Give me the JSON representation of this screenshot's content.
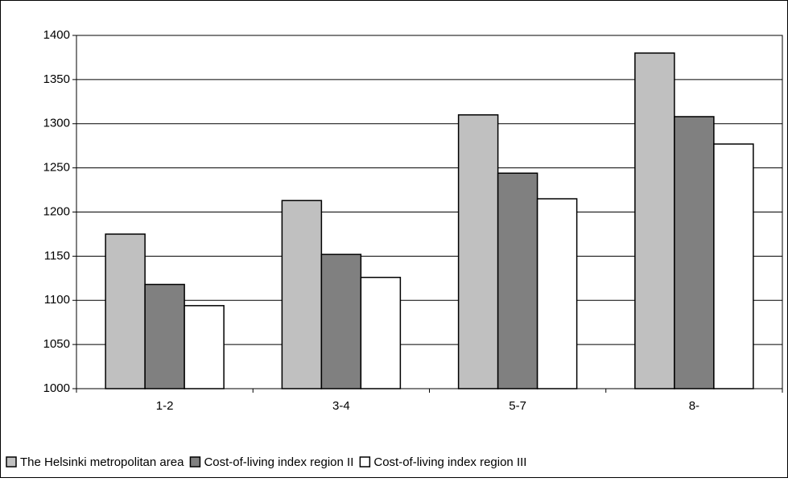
{
  "chart_data": {
    "type": "bar",
    "categories": [
      "1-2",
      "3-4",
      "5-7",
      "8-"
    ],
    "series": [
      {
        "name": "The Helsinki metropolitan area",
        "color": "#c0c0c0",
        "values": [
          1175,
          1213,
          1310,
          1380
        ]
      },
      {
        "name": "Cost-of-living index region II",
        "color": "#808080",
        "values": [
          1118,
          1152,
          1244,
          1308
        ]
      },
      {
        "name": "Cost-of-living index region III",
        "color": "#ffffff",
        "values": [
          1094,
          1126,
          1215,
          1277
        ]
      }
    ],
    "ylim": [
      1000,
      1400
    ],
    "yticks": [
      1000,
      1050,
      1100,
      1150,
      1200,
      1250,
      1300,
      1350,
      1400
    ],
    "grid": true,
    "legend": "bottom"
  }
}
